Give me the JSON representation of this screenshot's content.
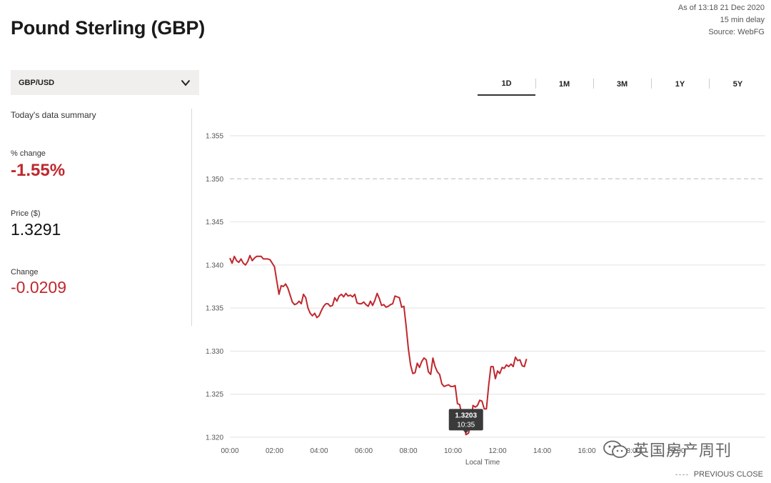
{
  "header": {
    "title": "Pound Sterling (GBP)",
    "as_of": "As of 13:18 21 Dec 2020",
    "delay": "15 min delay",
    "source": "Source: WebFG"
  },
  "selector": {
    "value": "GBP/USD",
    "icon": "chevron-down-icon"
  },
  "summary": {
    "heading": "Today's data summary",
    "pct_change_label": "% change",
    "pct_change_value": "-1.55%",
    "price_label": "Price ($)",
    "price_value": "1.3291",
    "change_label": "Change",
    "change_value": "-0.0209"
  },
  "tabs": [
    {
      "label": "1D",
      "active": true
    },
    {
      "label": "1M",
      "active": false
    },
    {
      "label": "3M",
      "active": false
    },
    {
      "label": "1Y",
      "active": false
    },
    {
      "label": "5Y",
      "active": false
    }
  ],
  "chart_data": {
    "type": "line",
    "xlabel": "Local Time",
    "ylabel": "",
    "xlim": [
      0,
      24
    ],
    "ylim": [
      1.32,
      1.355
    ],
    "yticks": [
      "1.355",
      "1.350",
      "1.345",
      "1.340",
      "1.335",
      "1.330",
      "1.325",
      "1.320"
    ],
    "yticks_values": [
      1.355,
      1.35,
      1.345,
      1.34,
      1.335,
      1.33,
      1.325,
      1.32
    ],
    "xticks": [
      "00:00",
      "02:00",
      "04:00",
      "06:00",
      "08:00",
      "10:00",
      "12:00",
      "14:00",
      "16:00",
      "18:00",
      "20:00"
    ],
    "xticks_values": [
      0,
      2,
      4,
      6,
      8,
      10,
      12,
      14,
      16,
      18,
      20
    ],
    "grid": true,
    "previous_close": 1.35,
    "series_color": "#c0272d",
    "x": [
      0.0,
      0.1,
      0.2,
      0.3,
      0.4,
      0.5,
      0.6,
      0.7,
      0.8,
      0.9,
      1.0,
      1.1,
      1.2,
      1.3,
      1.4,
      1.5,
      1.6,
      1.7,
      1.8,
      1.9,
      2.0,
      2.1,
      2.2,
      2.3,
      2.4,
      2.5,
      2.6,
      2.7,
      2.8,
      2.9,
      3.0,
      3.1,
      3.2,
      3.3,
      3.4,
      3.5,
      3.6,
      3.7,
      3.8,
      3.9,
      4.0,
      4.1,
      4.2,
      4.3,
      4.4,
      4.5,
      4.6,
      4.7,
      4.8,
      4.9,
      5.0,
      5.1,
      5.2,
      5.3,
      5.4,
      5.5,
      5.6,
      5.7,
      5.8,
      5.9,
      6.0,
      6.1,
      6.2,
      6.3,
      6.4,
      6.5,
      6.6,
      6.7,
      6.8,
      6.9,
      7.0,
      7.1,
      7.2,
      7.3,
      7.4,
      7.5,
      7.6,
      7.7,
      7.8,
      7.9,
      8.0,
      8.1,
      8.2,
      8.3,
      8.4,
      8.5,
      8.6,
      8.7,
      8.8,
      8.9,
      9.0,
      9.1,
      9.2,
      9.3,
      9.4,
      9.5,
      9.6,
      9.7,
      9.8,
      9.9,
      10.0,
      10.1,
      10.2,
      10.3,
      10.4,
      10.5,
      10.583,
      10.7,
      10.8,
      10.9,
      11.0,
      11.1,
      11.2,
      11.3,
      11.4,
      11.5,
      11.6,
      11.7,
      11.8,
      11.9,
      12.0,
      12.1,
      12.2,
      12.3,
      12.4,
      12.5,
      12.6,
      12.7,
      12.8,
      12.9,
      13.0,
      13.1,
      13.2,
      13.3
    ],
    "values": [
      1.3408,
      1.3402,
      1.341,
      1.3405,
      1.3403,
      1.3407,
      1.3402,
      1.34,
      1.3404,
      1.3411,
      1.3405,
      1.3408,
      1.341,
      1.341,
      1.341,
      1.3407,
      1.3407,
      1.3407,
      1.3406,
      1.3402,
      1.3398,
      1.3382,
      1.3366,
      1.3376,
      1.3375,
      1.3378,
      1.3373,
      1.3365,
      1.3357,
      1.3354,
      1.3355,
      1.3358,
      1.3355,
      1.3366,
      1.3362,
      1.335,
      1.3344,
      1.3341,
      1.3344,
      1.3339,
      1.3341,
      1.3347,
      1.3352,
      1.3355,
      1.3355,
      1.3352,
      1.3353,
      1.3362,
      1.3358,
      1.3364,
      1.3366,
      1.3363,
      1.3367,
      1.3364,
      1.3365,
      1.3363,
      1.3366,
      1.3356,
      1.3355,
      1.3355,
      1.3357,
      1.3354,
      1.3352,
      1.3358,
      1.3353,
      1.3359,
      1.3367,
      1.3361,
      1.3353,
      1.3354,
      1.3351,
      1.3352,
      1.3354,
      1.3355,
      1.3364,
      1.3363,
      1.3362,
      1.3351,
      1.3352,
      1.3329,
      1.3303,
      1.3284,
      1.3274,
      1.3275,
      1.3286,
      1.3281,
      1.3288,
      1.3292,
      1.329,
      1.3276,
      1.3273,
      1.3292,
      1.3282,
      1.3276,
      1.3273,
      1.3262,
      1.3259,
      1.326,
      1.3261,
      1.3259,
      1.3259,
      1.326,
      1.3239,
      1.3238,
      1.3225,
      1.3215,
      1.3203,
      1.3205,
      1.3216,
      1.3237,
      1.3235,
      1.3237,
      1.3243,
      1.3242,
      1.3233,
      1.3233,
      1.326,
      1.3282,
      1.3282,
      1.3268,
      1.3277,
      1.3274,
      1.3281,
      1.328,
      1.3284,
      1.3282,
      1.3285,
      1.3282,
      1.3293,
      1.3289,
      1.329,
      1.3283,
      1.3282,
      1.3291
    ],
    "tooltip": {
      "value": "1.3203",
      "time": "10:35",
      "x": 10.583,
      "y": 1.3203
    }
  },
  "legend": {
    "previous_close_label": "PREVIOUS CLOSE"
  },
  "watermark": {
    "text": "英国房产周刊",
    "icon": "wechat-icon"
  }
}
